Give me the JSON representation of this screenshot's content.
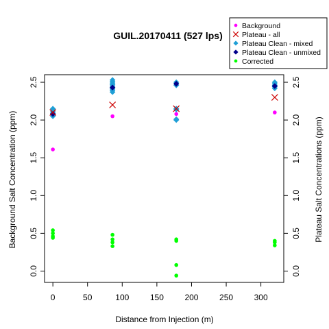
{
  "chart_data": {
    "type": "scatter",
    "title": "GUIL.20170411 (527 lps)",
    "xlabel": "Distance from Injection (m)",
    "ylabel": "Background Salt Concentration (ppm)",
    "ylabel_right": "Plateau Salt Concentrations (ppm)",
    "xlim": [
      -12,
      333
    ],
    "ylim": [
      -0.15,
      2.6
    ],
    "x_ticks": [
      0,
      50,
      100,
      150,
      200,
      250,
      300
    ],
    "y_ticks": [
      0.0,
      0.5,
      1.0,
      1.5,
      2.0,
      2.5
    ],
    "y_tick_labels": [
      "0.0",
      "0.5",
      "1.0",
      "1.5",
      "2.0",
      "2.5"
    ],
    "grid": false,
    "legend_position": "top-right",
    "series": [
      {
        "name": "Background",
        "color": "#ff00ff",
        "marker": "circle",
        "points": [
          [
            0,
            1.61
          ],
          [
            86,
            2.05
          ],
          [
            178,
            2.08
          ],
          [
            320,
            2.1
          ]
        ]
      },
      {
        "name": "Plateau - all",
        "color": "#cc0000",
        "marker": "x",
        "points": [
          [
            0,
            2.1
          ],
          [
            86,
            2.2
          ],
          [
            178,
            2.15
          ],
          [
            320,
            2.3
          ]
        ]
      },
      {
        "name": "Plateau Clean - mixed",
        "color": "#1f9fd6",
        "marker": "diamond",
        "points": [
          [
            0,
            2.05
          ],
          [
            0,
            2.07
          ],
          [
            0,
            2.09
          ],
          [
            0,
            2.11
          ],
          [
            0,
            2.13
          ],
          [
            0,
            2.15
          ],
          [
            86,
            2.37
          ],
          [
            86,
            2.39
          ],
          [
            86,
            2.41
          ],
          [
            86,
            2.43
          ],
          [
            86,
            2.45
          ],
          [
            86,
            2.47
          ],
          [
            86,
            2.49
          ],
          [
            86,
            2.51
          ],
          [
            86,
            2.53
          ],
          [
            178,
            2.0
          ],
          [
            178,
            2.01
          ],
          [
            178,
            2.14
          ],
          [
            178,
            2.15
          ],
          [
            178,
            2.46
          ],
          [
            178,
            2.48
          ],
          [
            178,
            2.5
          ],
          [
            320,
            2.42
          ],
          [
            320,
            2.44
          ],
          [
            320,
            2.46
          ],
          [
            320,
            2.48
          ],
          [
            320,
            2.5
          ]
        ]
      },
      {
        "name": "Plateau Clean - unmixed",
        "color": "#00008b",
        "marker": "diamond",
        "points": [
          [
            0,
            2.08
          ],
          [
            86,
            2.43
          ],
          [
            178,
            2.48
          ],
          [
            320,
            2.45
          ]
        ]
      },
      {
        "name": "Corrected",
        "color": "#00ff00",
        "marker": "circle",
        "points": [
          [
            0,
            0.44
          ],
          [
            0,
            0.46
          ],
          [
            0,
            0.5
          ],
          [
            0,
            0.54
          ],
          [
            86,
            0.33
          ],
          [
            86,
            0.38
          ],
          [
            86,
            0.42
          ],
          [
            86,
            0.48
          ],
          [
            178,
            -0.06
          ],
          [
            178,
            0.08
          ],
          [
            178,
            0.4
          ],
          [
            178,
            0.42
          ],
          [
            320,
            0.34
          ],
          [
            320,
            0.38
          ],
          [
            320,
            0.4
          ]
        ]
      }
    ]
  }
}
